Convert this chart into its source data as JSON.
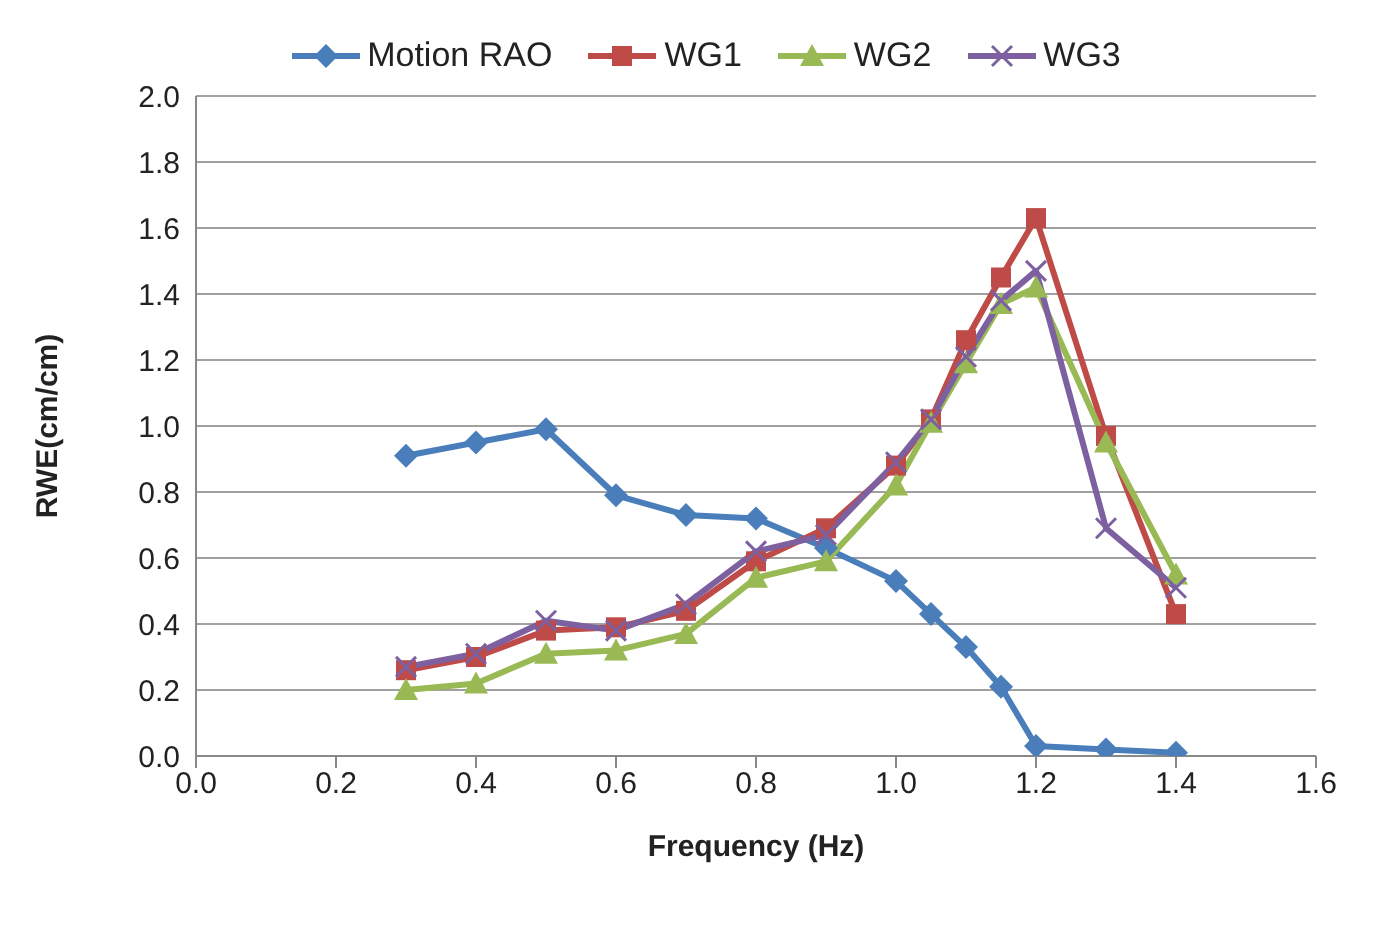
{
  "chart_data": {
    "type": "line",
    "xlabel": "Frequency (Hz)",
    "ylabel": "RWE(cm/cm)",
    "x": [
      0.3,
      0.4,
      0.5,
      0.6,
      0.7,
      0.8,
      0.9,
      1.0,
      1.05,
      1.1,
      1.15,
      1.2,
      1.3,
      1.4
    ],
    "series": [
      {
        "name": "Motion RAO",
        "color": "#4a7ebb",
        "marker": "diamond",
        "values": [
          0.91,
          0.95,
          0.99,
          0.79,
          0.73,
          0.72,
          0.63,
          0.53,
          0.43,
          0.33,
          0.21,
          0.03,
          0.02,
          0.01
        ]
      },
      {
        "name": "WG1",
        "color": "#be4b48",
        "marker": "square",
        "values": [
          0.26,
          0.3,
          0.38,
          0.39,
          0.44,
          0.59,
          0.69,
          0.88,
          1.02,
          1.26,
          1.45,
          1.63,
          0.97,
          0.43
        ]
      },
      {
        "name": "WG2",
        "color": "#98b954",
        "marker": "triangle",
        "values": [
          0.2,
          0.22,
          0.31,
          0.32,
          0.37,
          0.54,
          0.59,
          0.82,
          1.01,
          1.19,
          1.37,
          1.42,
          0.95,
          0.55
        ]
      },
      {
        "name": "WG3",
        "color": "#7d60a0",
        "marker": "cross",
        "values": [
          0.27,
          0.31,
          0.41,
          0.38,
          0.46,
          0.62,
          0.67,
          0.89,
          1.02,
          1.21,
          1.38,
          1.47,
          0.69,
          0.51
        ]
      }
    ],
    "xlim": [
      0,
      1.6
    ],
    "xticks": [
      {
        "value": 0,
        "label": "0.0"
      },
      {
        "value": 0.2,
        "label": "0.2"
      },
      {
        "value": 0.4,
        "label": "0.4"
      },
      {
        "value": 0.6,
        "label": "0.6"
      },
      {
        "value": 0.8,
        "label": "0.8"
      },
      {
        "value": 1.0,
        "label": "1.0"
      },
      {
        "value": 1.2,
        "label": "1.2"
      },
      {
        "value": 1.4,
        "label": "1.4"
      },
      {
        "value": 1.6,
        "label": "1.6"
      }
    ],
    "ylim": [
      0,
      2
    ],
    "yticks": [
      {
        "value": 0,
        "label": "0.0"
      },
      {
        "value": 0.2,
        "label": "0.2"
      },
      {
        "value": 0.4,
        "label": "0.4"
      },
      {
        "value": 0.6,
        "label": "0.6"
      },
      {
        "value": 0.8,
        "label": "0.8"
      },
      {
        "value": 1.0,
        "label": "1.0"
      },
      {
        "value": 1.2,
        "label": "1.2"
      },
      {
        "value": 1.4,
        "label": "1.4"
      },
      {
        "value": 1.6,
        "label": "1.6"
      },
      {
        "value": 1.8,
        "label": "1.8"
      },
      {
        "value": 2.0,
        "label": "2.0"
      }
    ],
    "grid": "y",
    "legend": "top",
    "line_style": "solid"
  }
}
